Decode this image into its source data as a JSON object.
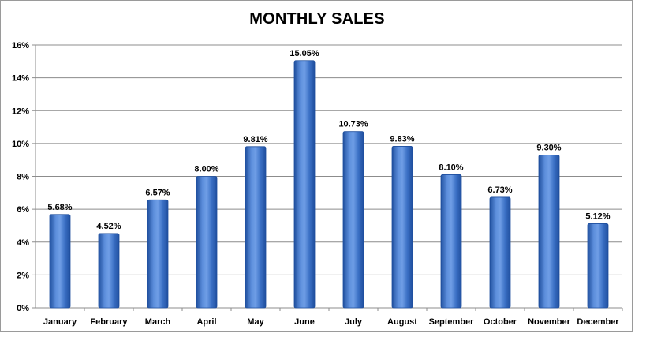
{
  "chart_data": {
    "type": "bar",
    "title": "MONTHLY SALES",
    "xlabel": "",
    "ylabel": "",
    "categories": [
      "January",
      "February",
      "March",
      "April",
      "May",
      "June",
      "July",
      "August",
      "September",
      "October",
      "November",
      "December"
    ],
    "values": [
      5.68,
      4.52,
      6.57,
      8.0,
      9.81,
      15.05,
      10.73,
      9.83,
      8.1,
      6.73,
      9.3,
      5.12
    ],
    "value_labels": [
      "5.68%",
      "4.52%",
      "6.57%",
      "8.00%",
      "9.81%",
      "15.05%",
      "10.73%",
      "9.83%",
      "8.10%",
      "6.73%",
      "9.30%",
      "5.12%"
    ],
    "y_ticks": [
      0,
      2,
      4,
      6,
      8,
      10,
      12,
      14,
      16
    ],
    "y_tick_labels": [
      "0%",
      "2%",
      "4%",
      "6%",
      "8%",
      "10%",
      "12%",
      "14%",
      "16%"
    ],
    "ylim": [
      0,
      16
    ],
    "grid": true,
    "legend": "none",
    "colors": {
      "bar": "#3a6fc4",
      "bar_dark": "#1f4f9e",
      "bar_light": "#6f9ee6",
      "grid": "#8c8c8c",
      "axis": "#8c8c8c"
    }
  }
}
